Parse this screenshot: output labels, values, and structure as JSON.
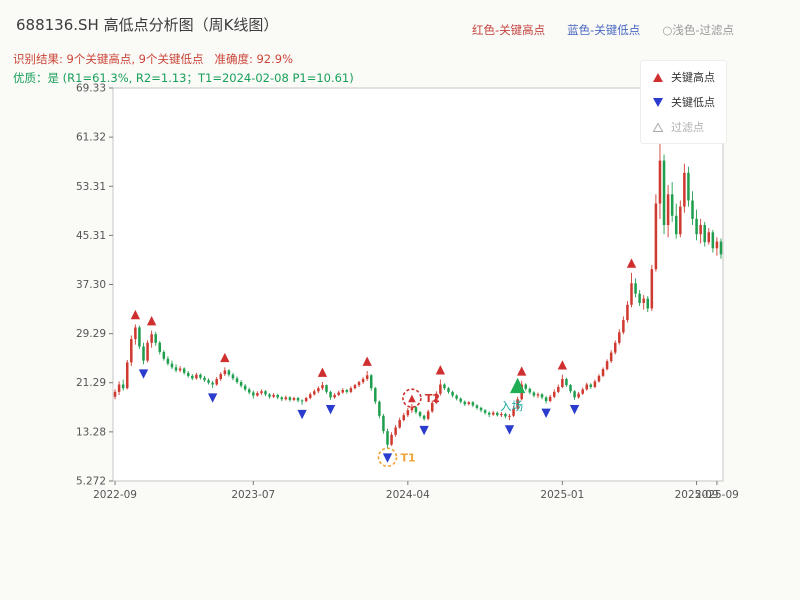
{
  "header": {
    "title": "688136.SH 高低点分析图（周K线图）",
    "legend_top": [
      {
        "label": "红色-关键高点",
        "color": "#c4423e"
      },
      {
        "label": "蓝色-关键低点",
        "color": "#4a68c0"
      },
      {
        "label": "○浅色-过滤点",
        "color": "#9a9a9a"
      }
    ],
    "result_line": "识别结果: 9个关键高点, 9个关键低点   准确度: 92.9%",
    "quality_line": "优质：是 (R1=61.3%, R2=1.13；T1=2024-02-08 P1=10.61)"
  },
  "legend_box": {
    "items": [
      {
        "label": "关键高点",
        "marker": "triangle-up",
        "color": "#d02f2f"
      },
      {
        "label": "关键低点",
        "marker": "triangle-down",
        "color": "#2a3ccd"
      },
      {
        "label": "过滤点",
        "marker": "triangle-up-hollow",
        "color": "#bbbbbb"
      }
    ]
  },
  "chart_data": {
    "type": "candlestick",
    "symbol": "688136.SH",
    "interval": "weekly",
    "title": "688136.SH 高低点分析图（周K线图）",
    "ylim": [
      5.272,
      69.33
    ],
    "grid": false,
    "y_ticks": [
      "69.33",
      "61.32",
      "53.31",
      "45.31",
      "37.30",
      "29.29",
      "21.29",
      "13.28",
      "5.272"
    ],
    "x_ticks": [
      {
        "label": "2022-09",
        "index": 0
      },
      {
        "label": "2023-07",
        "index": 34
      },
      {
        "label": "2024-04",
        "index": 72
      },
      {
        "label": "2025-01",
        "index": 110
      },
      {
        "label": "2025-09",
        "index": 143
      },
      {
        "label": "2025-09",
        "index": 148
      }
    ],
    "colors": {
      "up": "#cf3a30",
      "down": "#1f9e4e",
      "key_high": "#d02f2f",
      "key_low": "#2a3ccd",
      "filtered": "#bbbbbb",
      "entry": "#1fae54"
    },
    "candles": [
      [
        19.0,
        20.2,
        18.6,
        19.8
      ],
      [
        19.8,
        21.5,
        19.3,
        21.0
      ],
      [
        21.0,
        21.8,
        20.0,
        20.4
      ],
      [
        20.4,
        25.0,
        20.2,
        24.6
      ],
      [
        24.6,
        29.0,
        24.0,
        28.4
      ],
      [
        28.4,
        30.8,
        27.5,
        30.3
      ],
      [
        30.3,
        30.6,
        26.8,
        27.2
      ],
      [
        27.2,
        27.8,
        24.3,
        24.9
      ],
      [
        24.9,
        28.2,
        24.6,
        27.8
      ],
      [
        27.8,
        29.8,
        27.0,
        29.2
      ],
      [
        29.2,
        29.6,
        27.3,
        27.8
      ],
      [
        27.8,
        28.1,
        25.9,
        26.3
      ],
      [
        26.3,
        26.6,
        24.9,
        25.2
      ],
      [
        25.2,
        25.6,
        24.1,
        24.4
      ],
      [
        24.4,
        24.9,
        23.5,
        23.8
      ],
      [
        23.8,
        24.3,
        23.0,
        23.3
      ],
      [
        23.3,
        24.0,
        23.0,
        23.6
      ],
      [
        23.6,
        23.8,
        22.6,
        22.9
      ],
      [
        22.9,
        23.2,
        22.1,
        22.4
      ],
      [
        22.4,
        22.7,
        21.7,
        22.0
      ],
      [
        22.0,
        22.9,
        21.8,
        22.6
      ],
      [
        22.6,
        22.8,
        21.8,
        22.1
      ],
      [
        22.1,
        22.4,
        21.4,
        21.7
      ],
      [
        21.7,
        22.0,
        21.0,
        21.3
      ],
      [
        21.3,
        21.6,
        20.4,
        21.0
      ],
      [
        21.0,
        22.2,
        20.8,
        21.9
      ],
      [
        21.9,
        23.0,
        21.6,
        22.7
      ],
      [
        22.7,
        23.8,
        22.4,
        23.3
      ],
      [
        23.3,
        23.5,
        22.3,
        22.6
      ],
      [
        22.6,
        22.9,
        21.7,
        22.0
      ],
      [
        22.0,
        22.3,
        21.1,
        21.4
      ],
      [
        21.4,
        21.7,
        20.5,
        20.8
      ],
      [
        20.8,
        21.1,
        19.9,
        20.2
      ],
      [
        20.2,
        20.5,
        19.4,
        19.7
      ],
      [
        19.7,
        20.0,
        18.7,
        19.2
      ],
      [
        19.2,
        19.9,
        19.0,
        19.6
      ],
      [
        19.6,
        20.2,
        19.3,
        19.9
      ],
      [
        19.9,
        20.1,
        19.1,
        19.4
      ],
      [
        19.4,
        19.6,
        18.7,
        19.0
      ],
      [
        19.0,
        19.6,
        18.8,
        19.3
      ],
      [
        19.3,
        19.5,
        18.6,
        18.9
      ],
      [
        18.9,
        19.1,
        18.3,
        18.6
      ],
      [
        18.6,
        19.2,
        18.4,
        18.9
      ],
      [
        18.9,
        19.1,
        18.2,
        18.5
      ],
      [
        18.5,
        19.0,
        18.3,
        18.8
      ],
      [
        18.8,
        19.0,
        18.1,
        18.4
      ],
      [
        18.4,
        18.6,
        17.7,
        18.3
      ],
      [
        18.3,
        19.0,
        18.1,
        18.8
      ],
      [
        18.8,
        19.7,
        18.6,
        19.4
      ],
      [
        19.4,
        20.2,
        19.2,
        19.9
      ],
      [
        19.9,
        20.7,
        19.6,
        20.4
      ],
      [
        20.4,
        21.4,
        20.1,
        20.9
      ],
      [
        20.9,
        21.0,
        19.5,
        19.8
      ],
      [
        19.8,
        20.0,
        18.5,
        18.9
      ],
      [
        18.9,
        19.6,
        18.7,
        19.3
      ],
      [
        19.3,
        20.0,
        19.1,
        19.7
      ],
      [
        19.7,
        20.4,
        19.5,
        20.1
      ],
      [
        20.1,
        20.3,
        19.5,
        19.8
      ],
      [
        19.8,
        20.7,
        19.6,
        20.4
      ],
      [
        20.4,
        21.1,
        20.2,
        20.9
      ],
      [
        20.9,
        21.6,
        20.6,
        21.4
      ],
      [
        21.4,
        22.2,
        21.1,
        21.9
      ],
      [
        21.9,
        23.2,
        21.6,
        22.5
      ],
      [
        22.5,
        22.7,
        20.0,
        20.4
      ],
      [
        20.4,
        20.6,
        17.8,
        18.2
      ],
      [
        18.2,
        18.4,
        15.5,
        15.9
      ],
      [
        15.9,
        16.2,
        13.0,
        13.4
      ],
      [
        13.4,
        13.8,
        10.61,
        11.2
      ],
      [
        11.2,
        13.2,
        11.0,
        12.8
      ],
      [
        12.8,
        14.4,
        12.5,
        14.0
      ],
      [
        14.0,
        15.6,
        13.8,
        15.2
      ],
      [
        15.2,
        16.4,
        15.0,
        16.0
      ],
      [
        16.0,
        17.2,
        15.7,
        16.8
      ],
      [
        16.8,
        17.8,
        16.4,
        17.3
      ],
      [
        17.3,
        17.5,
        16.2,
        16.5
      ],
      [
        16.5,
        16.7,
        15.6,
        15.9
      ],
      [
        15.9,
        16.1,
        15.1,
        15.4
      ],
      [
        15.4,
        16.9,
        15.2,
        16.6
      ],
      [
        16.6,
        18.4,
        16.4,
        18.0
      ],
      [
        18.0,
        19.9,
        17.8,
        19.5
      ],
      [
        19.5,
        21.8,
        19.2,
        21.0
      ],
      [
        21.0,
        21.2,
        20.1,
        20.4
      ],
      [
        20.4,
        20.6,
        19.5,
        19.8
      ],
      [
        19.8,
        20.0,
        18.9,
        19.2
      ],
      [
        19.2,
        19.4,
        18.4,
        18.7
      ],
      [
        18.7,
        18.9,
        17.9,
        18.2
      ],
      [
        18.2,
        18.4,
        17.5,
        17.8
      ],
      [
        17.8,
        18.3,
        17.6,
        18.1
      ],
      [
        18.1,
        18.3,
        17.3,
        17.6
      ],
      [
        17.6,
        17.8,
        16.9,
        17.2
      ],
      [
        17.2,
        17.4,
        16.5,
        16.8
      ],
      [
        16.8,
        17.0,
        16.1,
        16.4
      ],
      [
        16.4,
        16.6,
        15.7,
        16.1
      ],
      [
        16.1,
        16.7,
        15.9,
        16.4
      ],
      [
        16.4,
        16.6,
        15.8,
        16.0
      ],
      [
        16.0,
        16.5,
        15.7,
        16.2
      ],
      [
        16.2,
        16.4,
        15.5,
        15.8
      ],
      [
        15.8,
        16.2,
        15.2,
        15.9
      ],
      [
        15.9,
        17.5,
        15.7,
        17.1
      ],
      [
        17.1,
        19.0,
        16.9,
        18.6
      ],
      [
        18.6,
        21.6,
        18.4,
        21.0
      ],
      [
        21.0,
        21.2,
        20.0,
        20.3
      ],
      [
        20.3,
        20.5,
        19.4,
        19.7
      ],
      [
        19.7,
        19.9,
        18.9,
        19.2
      ],
      [
        19.2,
        19.7,
        18.8,
        19.4
      ],
      [
        19.4,
        19.6,
        18.6,
        18.9
      ],
      [
        18.9,
        19.1,
        17.9,
        18.3
      ],
      [
        18.3,
        19.3,
        18.1,
        19.0
      ],
      [
        19.0,
        20.2,
        18.8,
        19.8
      ],
      [
        19.8,
        21.0,
        19.6,
        20.6
      ],
      [
        20.6,
        22.6,
        20.4,
        21.9
      ],
      [
        21.9,
        22.1,
        20.6,
        20.9
      ],
      [
        20.9,
        21.1,
        19.6,
        19.9
      ],
      [
        19.9,
        20.1,
        18.5,
        18.9
      ],
      [
        18.9,
        19.8,
        18.7,
        19.5
      ],
      [
        19.5,
        20.5,
        19.3,
        20.2
      ],
      [
        20.2,
        21.3,
        20.0,
        21.0
      ],
      [
        21.0,
        21.2,
        20.3,
        20.6
      ],
      [
        20.6,
        21.8,
        20.4,
        21.5
      ],
      [
        21.5,
        22.7,
        21.3,
        22.4
      ],
      [
        22.4,
        23.8,
        22.2,
        23.5
      ],
      [
        23.5,
        25.1,
        23.3,
        24.8
      ],
      [
        24.8,
        26.6,
        24.5,
        26.2
      ],
      [
        26.2,
        28.2,
        25.9,
        27.8
      ],
      [
        27.8,
        30.0,
        27.5,
        29.5
      ],
      [
        29.5,
        32.1,
        29.2,
        31.5
      ],
      [
        31.5,
        34.6,
        31.1,
        34.0
      ],
      [
        34.0,
        39.2,
        33.6,
        37.5
      ],
      [
        37.5,
        38.3,
        35.2,
        35.8
      ],
      [
        35.8,
        36.4,
        33.8,
        34.3
      ],
      [
        34.3,
        35.6,
        33.2,
        35.0
      ],
      [
        35.0,
        35.4,
        32.8,
        33.4
      ],
      [
        33.4,
        40.5,
        33.0,
        39.8
      ],
      [
        39.8,
        52.0,
        39.4,
        50.5
      ],
      [
        50.5,
        62.5,
        48.0,
        57.5
      ],
      [
        57.5,
        58.5,
        45.5,
        47.0
      ],
      [
        47.0,
        53.5,
        45.0,
        52.0
      ],
      [
        52.0,
        54.0,
        47.5,
        48.5
      ],
      [
        48.5,
        50.5,
        44.8,
        45.5
      ],
      [
        45.5,
        51.0,
        45.0,
        50.0
      ],
      [
        50.0,
        57.0,
        49.0,
        55.5
      ],
      [
        55.5,
        56.5,
        50.0,
        51.0
      ],
      [
        51.0,
        52.5,
        47.0,
        48.0
      ],
      [
        48.0,
        49.5,
        44.5,
        45.5
      ],
      [
        45.5,
        48.0,
        44.0,
        47.0
      ],
      [
        47.0,
        47.5,
        43.5,
        44.2
      ],
      [
        44.2,
        46.5,
        43.8,
        45.8
      ],
      [
        45.8,
        46.2,
        42.5,
        43.2
      ],
      [
        43.2,
        45.0,
        42.0,
        44.3
      ],
      [
        44.3,
        44.8,
        41.5,
        42.2
      ]
    ],
    "key_highs": [
      5,
      9,
      27,
      51,
      62,
      80,
      100,
      110,
      127
    ],
    "key_lows": [
      7,
      24,
      46,
      53,
      67,
      76,
      97,
      106,
      113
    ],
    "filtered_points": [
      {
        "index": 134,
        "dir": "up"
      }
    ],
    "annotations": [
      {
        "kind": "circle",
        "index": 67,
        "anchor": "low",
        "label": "T1",
        "color": "#f0a43a"
      },
      {
        "kind": "circle",
        "index": 73,
        "anchor": "high",
        "label": "T2",
        "color": "#d02f2f",
        "triangle": "up"
      },
      {
        "kind": "entry",
        "index": 99,
        "label": "入场",
        "color": "#1fae54",
        "label_color": "#16a89c"
      }
    ]
  }
}
